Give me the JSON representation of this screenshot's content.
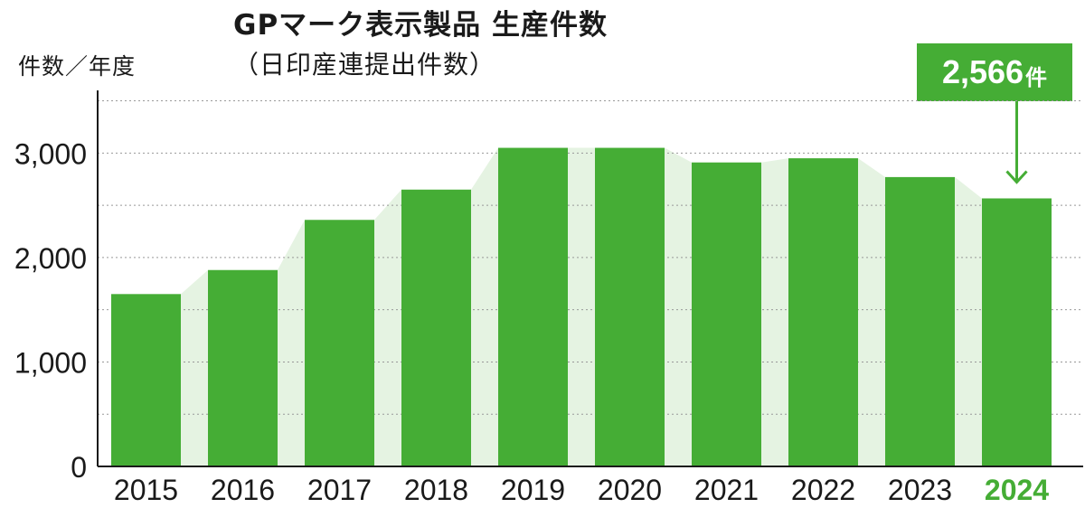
{
  "chart_data": {
    "type": "bar",
    "title": "GPマーク表示製品 生産件数",
    "subtitle": "（日印産連提出件数）",
    "ylabel": "件数／年度",
    "categories": [
      "2015",
      "2016",
      "2017",
      "2018",
      "2019",
      "2020",
      "2021",
      "2022",
      "2023",
      "2024"
    ],
    "values": [
      1650,
      1880,
      2360,
      2650,
      3050,
      3050,
      2910,
      2950,
      2770,
      2566
    ],
    "ylim": [
      0,
      3600
    ],
    "yticks": [
      0,
      1000,
      2000,
      3000
    ],
    "ytick_labels": [
      "0",
      "1,000",
      "2,000",
      "3,000"
    ],
    "highlight": {
      "category": "2024",
      "label_value": "2,566",
      "label_unit": "件"
    },
    "grid": true,
    "colors": {
      "bar": "#45ad35",
      "area": "#e5f3e2",
      "highlight_text": "#45ad35",
      "axis": "#1a1a1a",
      "grid": "#999999"
    }
  }
}
